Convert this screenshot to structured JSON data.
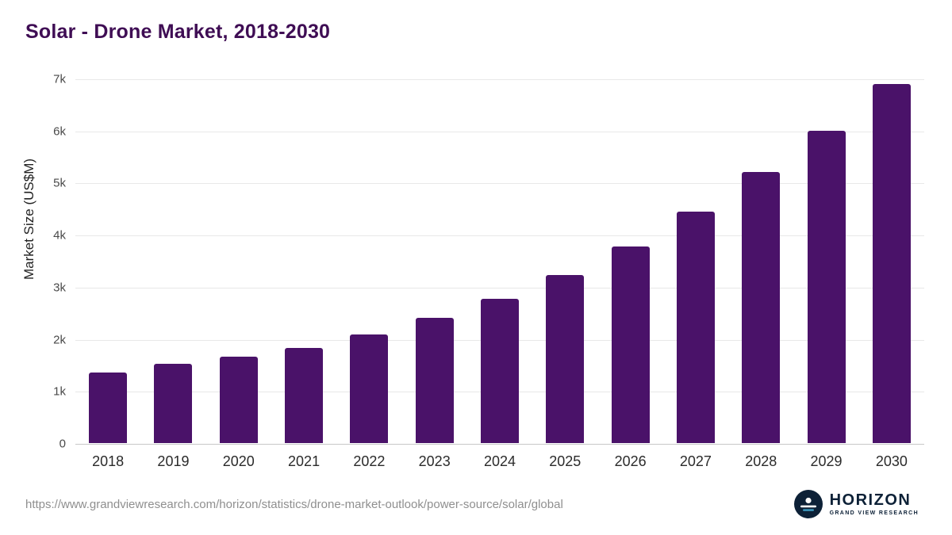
{
  "chart_data": {
    "type": "bar",
    "title": "Solar - Drone Market, 2018-2030",
    "ylabel": "Market Size (US$M)",
    "xlabel": "",
    "categories": [
      "2018",
      "2019",
      "2020",
      "2021",
      "2022",
      "2023",
      "2024",
      "2025",
      "2026",
      "2027",
      "2028",
      "2029",
      "2030"
    ],
    "values": [
      1350,
      1520,
      1660,
      1820,
      2080,
      2400,
      2770,
      3230,
      3780,
      4450,
      5200,
      6000,
      6900
    ],
    "ylim": [
      0,
      7000
    ],
    "yticks": [
      {
        "value": 0,
        "label": "0"
      },
      {
        "value": 1000,
        "label": "1k"
      },
      {
        "value": 2000,
        "label": "2k"
      },
      {
        "value": 3000,
        "label": "3k"
      },
      {
        "value": 4000,
        "label": "4k"
      },
      {
        "value": 5000,
        "label": "5k"
      },
      {
        "value": 6000,
        "label": "6k"
      },
      {
        "value": 7000,
        "label": "7k"
      }
    ],
    "grid": "horizontal",
    "legend": "none",
    "bar_color": "#4a1269",
    "title_color": "#3f0d54"
  },
  "footer": {
    "source_url": "https://www.grandviewresearch.com/horizon/statistics/drone-market-outlook/power-source/solar/global",
    "logo_title": "HORIZON",
    "logo_subtitle": "GRAND VIEW RESEARCH",
    "logo_color": "#0d2137"
  }
}
